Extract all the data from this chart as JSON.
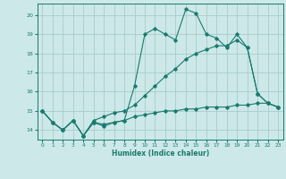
{
  "title": "",
  "xlabel": "Humidex (Indice chaleur)",
  "ylabel": "",
  "bg_color": "#cce8e8",
  "grid_color": "#aacccc",
  "line_color": "#1a7a6e",
  "xlim": [
    -0.5,
    23.5
  ],
  "ylim": [
    13.5,
    20.6
  ],
  "yticks": [
    14,
    15,
    16,
    17,
    18,
    19,
    20
  ],
  "xticks": [
    0,
    1,
    2,
    3,
    4,
    5,
    6,
    7,
    8,
    9,
    10,
    11,
    12,
    13,
    14,
    15,
    16,
    17,
    18,
    19,
    20,
    21,
    22,
    23
  ],
  "series1_x": [
    0,
    1,
    2,
    3,
    4,
    5,
    6,
    7,
    8,
    9,
    10,
    11,
    12,
    13,
    14,
    15,
    16,
    17,
    18,
    19,
    20,
    21,
    22,
    23
  ],
  "series1_y": [
    15.0,
    14.4,
    14.0,
    14.5,
    13.7,
    14.4,
    14.2,
    14.4,
    14.5,
    16.3,
    19.0,
    19.3,
    19.0,
    18.7,
    20.3,
    20.1,
    19.0,
    18.8,
    18.3,
    19.0,
    18.3,
    15.9,
    15.4,
    15.2
  ],
  "series2_x": [
    0,
    1,
    2,
    3,
    4,
    5,
    6,
    7,
    8,
    9,
    10,
    11,
    12,
    13,
    14,
    15,
    16,
    17,
    18,
    19,
    20,
    21,
    22,
    23
  ],
  "series2_y": [
    15.0,
    14.4,
    14.0,
    14.5,
    13.7,
    14.4,
    14.3,
    14.4,
    14.5,
    14.7,
    14.8,
    14.9,
    15.0,
    15.0,
    15.1,
    15.1,
    15.2,
    15.2,
    15.2,
    15.3,
    15.3,
    15.4,
    15.4,
    15.2
  ],
  "series3_x": [
    0,
    1,
    2,
    3,
    4,
    5,
    6,
    7,
    8,
    9,
    10,
    11,
    12,
    13,
    14,
    15,
    16,
    17,
    18,
    19,
    20,
    21,
    22,
    23
  ],
  "series3_y": [
    15.0,
    14.4,
    14.0,
    14.5,
    13.7,
    14.5,
    14.7,
    14.9,
    15.0,
    15.3,
    15.8,
    16.3,
    16.8,
    17.2,
    17.7,
    18.0,
    18.2,
    18.4,
    18.4,
    18.7,
    18.3,
    15.9,
    15.4,
    15.2
  ]
}
